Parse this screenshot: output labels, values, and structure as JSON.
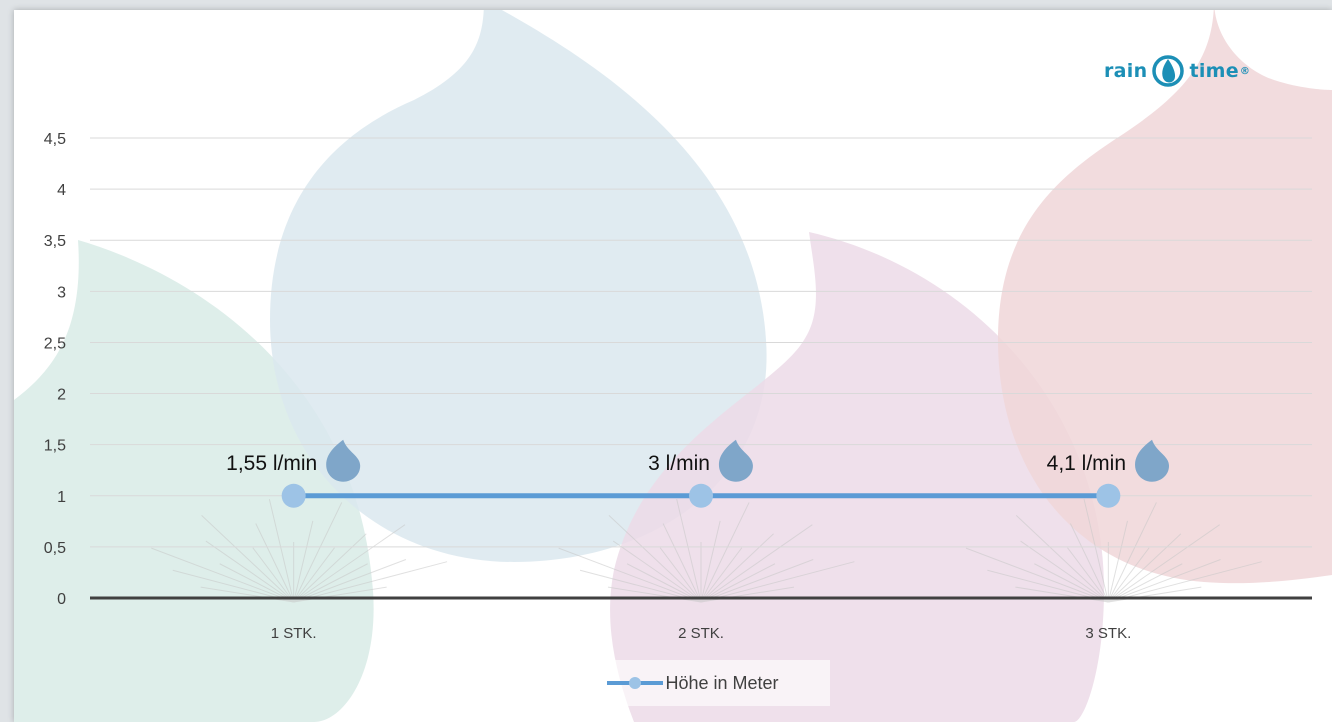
{
  "brand": {
    "word1": "rain",
    "word2": "time",
    "mark": "®"
  },
  "colors": {
    "line": "#5b9bd5",
    "marker": "#9dc3e6",
    "drop_icon": "#7fa6c9",
    "grid": "#d9d9d9",
    "axis": "#404040",
    "blob_teal": "#d8ebe6",
    "blob_blue": "#dae7ee",
    "blob_purple": "#ecdbe8",
    "blob_red": "#f0d6d8"
  },
  "chart_data": {
    "type": "line",
    "categories": [
      "1 STK.",
      "2 STK.",
      "3 STK."
    ],
    "series": [
      {
        "name": "Höhe in Meter",
        "values": [
          1,
          1,
          1
        ]
      }
    ],
    "data_labels": [
      "1,55 l/min",
      "3 l/min",
      "4,1 l/min"
    ],
    "y_ticks": [
      "0",
      "0,5",
      "1",
      "1,5",
      "2",
      "2,5",
      "3",
      "3,5",
      "4",
      "4,5"
    ],
    "ylim": [
      0,
      4.5
    ],
    "grid": true,
    "legend_position": "bottom",
    "title": "",
    "xlabel": "",
    "ylabel": ""
  }
}
